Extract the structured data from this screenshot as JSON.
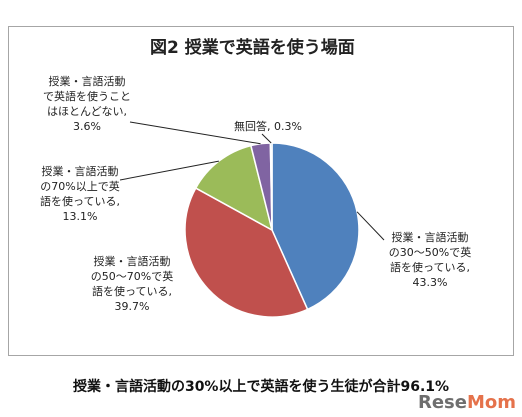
{
  "chart_data": {
    "type": "pie",
    "title": "図2 授業で英語を使う場面",
    "slices": [
      {
        "label": "授業・言語活動の30～50%で英語を使っている",
        "value": 43.3,
        "color": "#4f81bd"
      },
      {
        "label": "授業・言語活動の50～70%で英語を使っている",
        "value": 39.7,
        "color": "#c0504d"
      },
      {
        "label": "授業・言語活動の70%以上で英語を使っている",
        "value": 13.1,
        "color": "#9bbb59"
      },
      {
        "label": "授業・言語活動で英語を使うことはほとんどない",
        "value": 3.6,
        "color": "#8064a2"
      },
      {
        "label": "無回答",
        "value": 0.3,
        "color": "#4bacc6"
      }
    ]
  },
  "labels": {
    "s0": "授業・言語活動\nの30～50%で英\n語を使っている,\n43.3%",
    "s1": "授業・言語活動\nの50～70%で英\n語を使っている,\n39.7%",
    "s2": "授業・言語活動\nの70%以上で英\n語を使っている,\n13.1%",
    "s3": "授業・言語活動\nで英語を使うこと\nはほとんどない,\n3.6%",
    "s4": "無回答, 0.3%"
  },
  "caption": "授業・言語活動の30%以上で英語を使う生徒が合計96.1%",
  "watermark": {
    "part1": "Rese",
    "part2": "Mom"
  }
}
